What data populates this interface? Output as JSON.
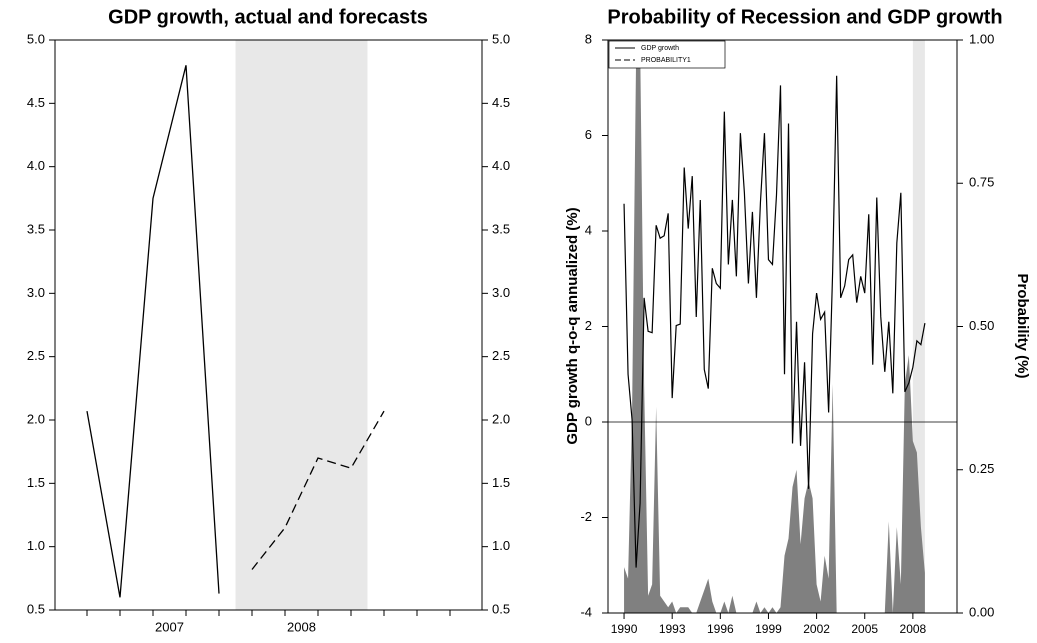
{
  "chart_data": [
    {
      "type": "line",
      "title": "GDP growth, actual and forecasts",
      "categories": [
        null,
        null,
        null,
        null,
        null,
        null,
        null,
        null,
        null,
        null,
        null,
        null
      ],
      "years": [
        "2007",
        "2008"
      ],
      "series": [
        {
          "color": "#000000",
          "dash": "none",
          "values": [
            2.07,
            0.6,
            3.75,
            4.8,
            0.63,
            null,
            null,
            null,
            null,
            null,
            null,
            null
          ]
        },
        {
          "color": "#000000",
          "dash": "9,5",
          "values": [
            null,
            null,
            null,
            null,
            null,
            0.82,
            1.15,
            1.7,
            1.62,
            2.07,
            null,
            null
          ]
        }
      ],
      "ylim": [
        0.5,
        5.0
      ],
      "yticks": [
        0.5,
        {
          "value": 1,
          "label": "1.0"
        },
        1.5,
        {
          "value": 2,
          "label": "2.0"
        },
        2.5,
        {
          "value": 3,
          "label": "3.0"
        },
        3.5,
        {
          "value": 4,
          "label": "4.0"
        },
        4.5,
        {
          "value": 5,
          "label": "5.0"
        }
      ],
      "shade_color": "#e8e8e8"
    },
    {
      "type": "line",
      "title": "Probability of Recession and GDP growth",
      "y_label": "GDP growth q-o-q annualized (%)",
      "y2_label": "Probability (%)",
      "x": [
        1990,
        1990.25,
        1990.5,
        1990.75,
        1991,
        1991.25,
        1991.5,
        1991.75,
        1992,
        1992.25,
        1992.5,
        1992.75,
        1993,
        1993.25,
        1993.5,
        1993.75,
        1994,
        1994.25,
        1994.5,
        1994.75,
        1995,
        1995.25,
        1995.5,
        1995.75,
        1996,
        1996.25,
        1996.5,
        1996.75,
        1997,
        1997.25,
        1997.5,
        1997.75,
        1998,
        1998.25,
        1998.5,
        1998.75,
        1999,
        1999.25,
        1999.5,
        1999.75,
        2000,
        2000.25,
        2000.5,
        2000.75,
        2001,
        2001.25,
        2001.5,
        2001.75,
        2002,
        2002.25,
        2002.5,
        2002.75,
        2003,
        2003.25,
        2003.5,
        2003.75,
        2004,
        2004.25,
        2004.5,
        2004.75,
        2005,
        2005.25,
        2005.5,
        2005.75,
        2006,
        2006.25,
        2006.5,
        2006.75,
        2007,
        2007.25,
        2007.5,
        2007.75,
        2008,
        2008.25,
        2008.5,
        2008.75
      ],
      "series": [
        {
          "name": "GDP growth",
          "color": "#000000",
          "values": [
            4.57,
            1.0,
            0.05,
            -3.05,
            -1.7,
            2.6,
            1.9,
            1.87,
            4.12,
            3.85,
            3.9,
            4.37,
            0.5,
            2.02,
            2.05,
            5.33,
            4.05,
            5.15,
            2.2,
            4.65,
            1.1,
            0.7,
            3.22,
            2.9,
            2.8,
            6.5,
            3.3,
            4.65,
            3.05,
            6.05,
            4.8,
            2.9,
            4.4,
            2.6,
            4.6,
            6.05,
            3.4,
            3.3,
            4.75,
            7.05,
            1.0,
            6.25,
            -0.45,
            2.1,
            -0.5,
            1.25,
            -1.4,
            1.85,
            2.7,
            2.15,
            2.3,
            0.2,
            3.15,
            7.25,
            2.6,
            2.85,
            3.4,
            3.5,
            2.5,
            3.05,
            2.7,
            4.35,
            1.2,
            4.7,
            2.2,
            1.05,
            2.1,
            0.6,
            3.75,
            4.8,
            0.63,
            0.82,
            1.15,
            1.7,
            1.62,
            2.07
          ]
        },
        {
          "name": "PROBABILITY1",
          "color": "#808080",
          "axis": "y2",
          "area": true,
          "dash": "6,3",
          "values": [
            0.08,
            0.06,
            0.35,
            0.97,
            1.0,
            0.4,
            0.03,
            0.05,
            0.36,
            0.03,
            0.02,
            0.01,
            0.02,
            0,
            0.01,
            0.01,
            0.01,
            0,
            0,
            0.02,
            0.04,
            0.06,
            0.02,
            0,
            0,
            0.02,
            0,
            0.03,
            0,
            0,
            0,
            0,
            0,
            0.02,
            0,
            0.01,
            0,
            0.01,
            0,
            0.01,
            0.1,
            0.13,
            0.22,
            0.25,
            0.12,
            0.2,
            0.23,
            0.2,
            0.05,
            0.02,
            0.1,
            0.06,
            0.4,
            0,
            0,
            0,
            0,
            0,
            0,
            0,
            0,
            0,
            0,
            0,
            0,
            0,
            0.16,
            0,
            0.15,
            0.05,
            0.4,
            0.45,
            0.3,
            0.28,
            0.15,
            0.07
          ]
        }
      ],
      "xlim": [
        1989,
        2010.75
      ],
      "xticks": [
        1990,
        1993,
        1996,
        1999,
        2002,
        2005,
        2008
      ],
      "ylim": [
        -4,
        8
      ],
      "yticks": [
        -4,
        -2,
        0,
        2,
        4,
        6,
        8
      ],
      "y2lim": [
        0,
        1
      ],
      "y2ticks": [
        {
          "value": 0,
          "label": "0.00"
        },
        0.25,
        {
          "value": 0.5,
          "label": "0.50"
        },
        0.75,
        {
          "value": 1,
          "label": "1.00"
        }
      ],
      "legend": "upper left",
      "shade_color": "#e8e8e8"
    }
  ]
}
